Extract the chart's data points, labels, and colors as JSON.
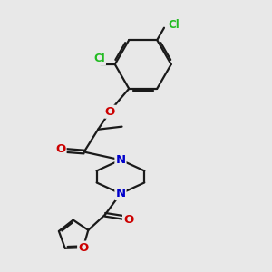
{
  "bg_color": "#e8e8e8",
  "bond_color": "#1a1a1a",
  "bond_width": 1.6,
  "atom_colors": {
    "N": "#0000cc",
    "O": "#cc0000",
    "Cl": "#22bb22"
  },
  "font_size_atom": 9.5,
  "font_size_cl": 8.5
}
